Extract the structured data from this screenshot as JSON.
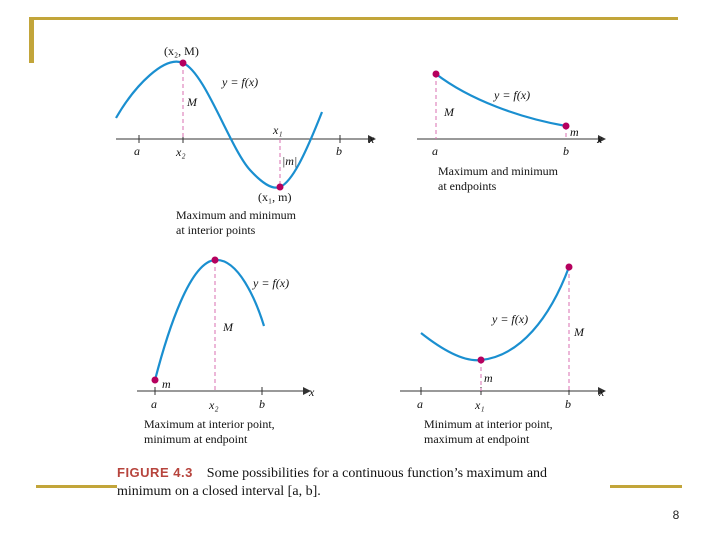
{
  "colors": {
    "curve": "#1a8fd0",
    "point": "#b5005e",
    "guide": "#d86fb0",
    "axis": "#333333",
    "accent": "#c2a53a",
    "caption_label": "#b7443d"
  },
  "panels": [
    {
      "id": "interior-both",
      "labels": {
        "point_max": "(x₂, M)",
        "func": "y = f(x)",
        "M": "M",
        "x1": "x₁",
        "m_abs": "|m|",
        "a": "a",
        "x2": "x₂",
        "b": "b",
        "x": "x",
        "point_min": "(x₁, m)"
      },
      "caption_lines": [
        "Maximum and minimum",
        "at interior points"
      ]
    },
    {
      "id": "endpoints-both",
      "labels": {
        "M": "M",
        "func": "y = f(x)",
        "m": "m",
        "a": "a",
        "b": "b",
        "x": "x"
      },
      "caption_lines": [
        "Maximum and minimum",
        "at endpoints"
      ]
    },
    {
      "id": "max-interior-min-endpoint",
      "labels": {
        "func": "y = f(x)",
        "M": "M",
        "m": "m",
        "a": "a",
        "x2": "x₂",
        "b": "b",
        "x": "x"
      },
      "caption_lines": [
        "Maximum at interior point,",
        "minimum at endpoint"
      ]
    },
    {
      "id": "min-interior-max-endpoint",
      "labels": {
        "func": "y = f(x)",
        "M": "M",
        "m": "m",
        "a": "a",
        "x1": "x₁",
        "b": "b",
        "x": "x"
      },
      "caption_lines": [
        "Minimum at interior point,",
        "maximum at endpoint"
      ]
    }
  ],
  "caption": {
    "label": "FIGURE 4.3",
    "text": "Some possibilities for a continuous function’s maximum and minimum on a closed interval [a, b]."
  },
  "page_number": "8"
}
